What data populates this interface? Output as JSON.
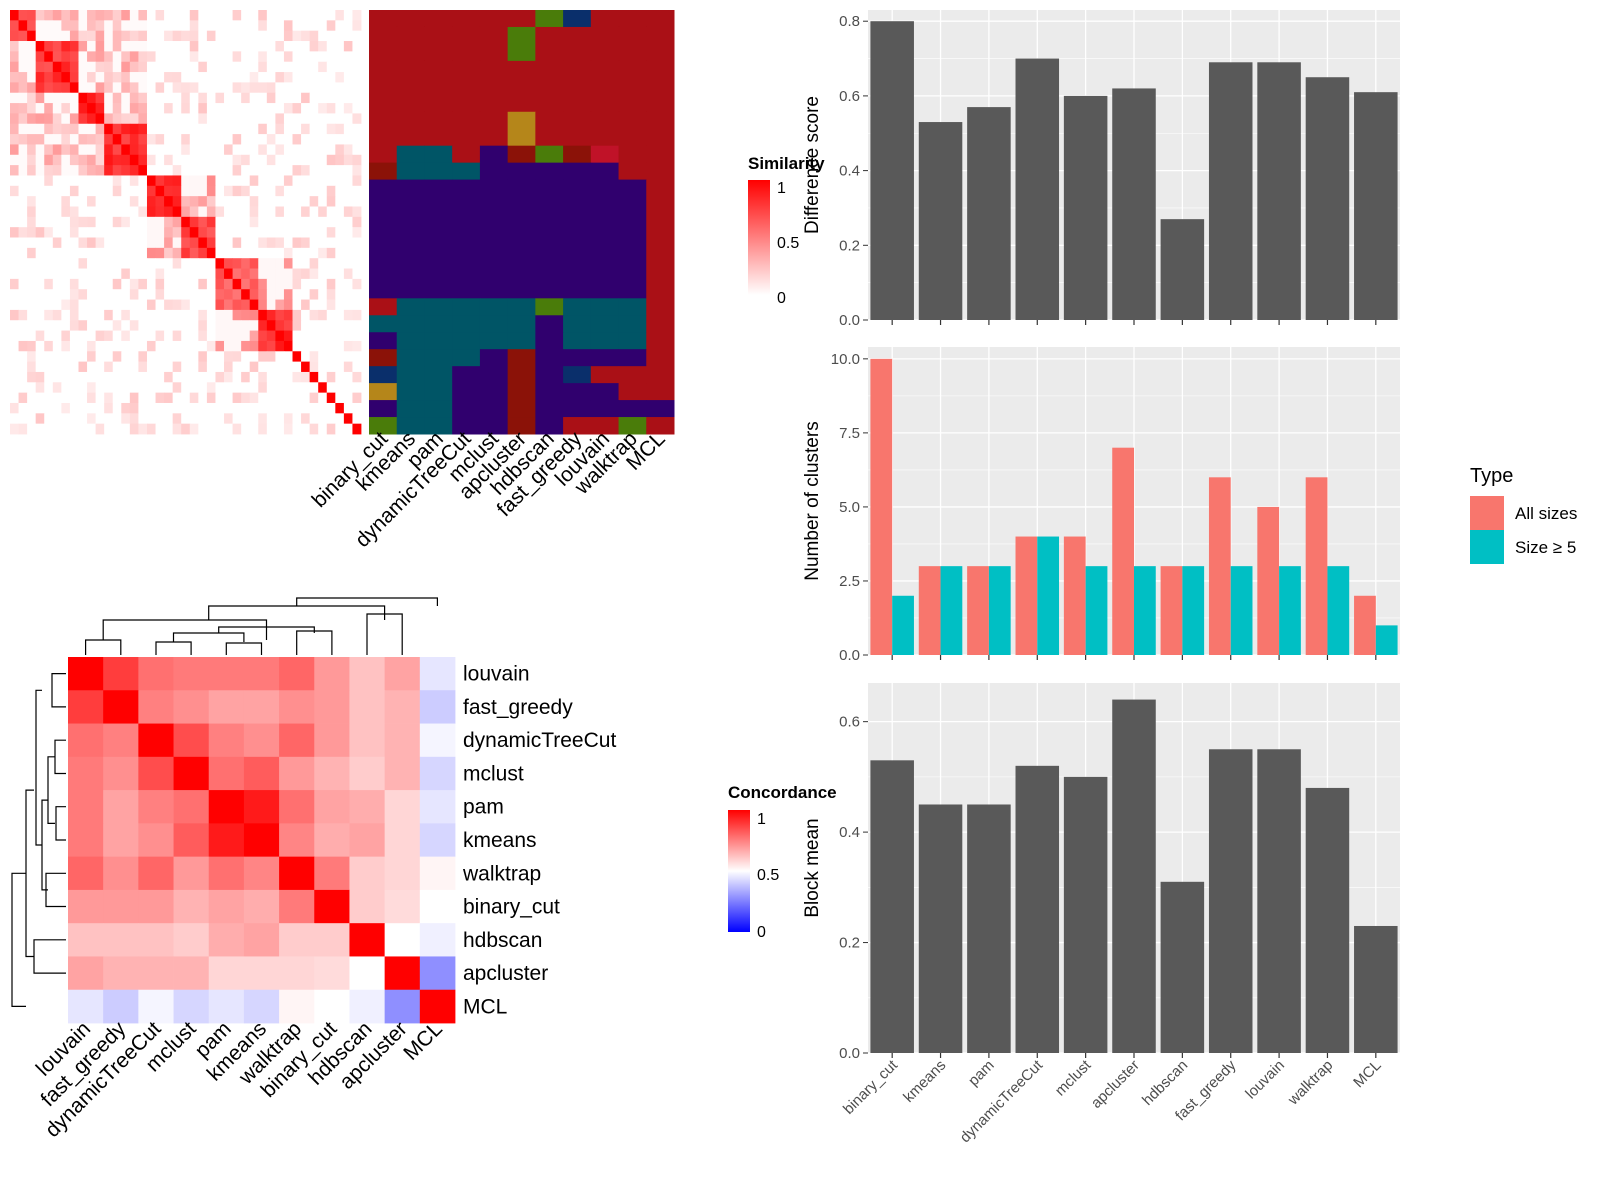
{
  "methods_order": [
    "binary_cut",
    "kmeans",
    "pam",
    "dynamicTreeCut",
    "mclust",
    "apcluster",
    "hdbscan",
    "fast_greedy",
    "louvain",
    "walktrap",
    "MCL"
  ],
  "colors": {
    "panel_bg": "#ebebeb",
    "grid": "#ffffff",
    "bar": "#595959",
    "all_sizes": "#f8766d",
    "size_ge_5": "#00bfc4",
    "heat_high": "#ff0000",
    "heat_mid": "#ffffff",
    "heat_low": "#0000ff"
  },
  "chart_data": [
    {
      "id": "similarity_heatmap",
      "type": "heatmap",
      "legend_title": "Similarity",
      "legend_ticks": [
        "1",
        "0.5",
        "0"
      ],
      "rows": 41,
      "cluster_blocks": [
        {
          "start": 0,
          "size": 3,
          "strength": 0.78
        },
        {
          "start": 3,
          "size": 5,
          "strength": 0.88
        },
        {
          "start": 8,
          "size": 3,
          "strength": 0.95
        },
        {
          "start": 11,
          "size": 5,
          "strength": 0.92
        },
        {
          "start": 16,
          "size": 4,
          "strength": 0.95
        },
        {
          "start": 20,
          "size": 4,
          "strength": 0.85
        },
        {
          "start": 24,
          "size": 5,
          "strength": 0.72
        },
        {
          "start": 29,
          "size": 4,
          "strength": 0.95
        }
      ]
    },
    {
      "id": "membership_grid",
      "type": "heatmap",
      "columns": [
        "binary_cut",
        "kmeans",
        "pam",
        "dynamicTreeCut",
        "mclust",
        "apcluster",
        "hdbscan",
        "fast_greedy",
        "louvain",
        "walktrap",
        "MCL"
      ],
      "palette": {
        "R": "#aa1016",
        "N": "#30006e",
        "T": "#005566",
        "G": "#4a7c0a",
        "O": "#b5861a",
        "D": "#8b1208",
        "B": "#0a2f6b",
        "C": "#c01228"
      },
      "row_bands": [
        {
          "rows": 1,
          "cells": "RRRRRRGBRRR"
        },
        {
          "rows": 2,
          "cells": "RRRRRGRRRRR"
        },
        {
          "rows": 3,
          "cells": "RRRRRRRRRRR"
        },
        {
          "rows": 2,
          "cells": "RRRRRORRRRR"
        },
        {
          "rows": 1,
          "cells": "RTTRNDGDCRR"
        },
        {
          "rows": 1,
          "cells": "DTTTNNNNNRR"
        },
        {
          "rows": 7,
          "cells": "NNNNNNNNNNR"
        },
        {
          "rows": 1,
          "cells": "RTTTTTGTTTR"
        },
        {
          "rows": 1,
          "cells": "TTTTTTNTTTR"
        },
        {
          "rows": 1,
          "cells": "NTTTTTNTTTR"
        },
        {
          "rows": 1,
          "cells": "DTTTNDNNNNR"
        },
        {
          "rows": 1,
          "cells": "BTTNNDNBRRR"
        },
        {
          "rows": 1,
          "cells": "OTTNNDNNNRR"
        },
        {
          "rows": 1,
          "cells": "NTTNNDNNNNN"
        },
        {
          "rows": 1,
          "cells": "GTTNNDNRRGR"
        }
      ]
    },
    {
      "id": "concordance_heatmap",
      "type": "heatmap",
      "legend_title": "Concordance",
      "legend_ticks": [
        "1",
        "0.5",
        "0"
      ],
      "labels": [
        "louvain",
        "fast_greedy",
        "dynamicTreeCut",
        "mclust",
        "pam",
        "kmeans",
        "walktrap",
        "binary_cut",
        "hdbscan",
        "apcluster",
        "MCL"
      ],
      "matrix": [
        [
          1.0,
          0.88,
          0.78,
          0.76,
          0.76,
          0.76,
          0.8,
          0.7,
          0.62,
          0.68,
          0.45
        ],
        [
          0.88,
          1.0,
          0.75,
          0.72,
          0.68,
          0.68,
          0.72,
          0.7,
          0.62,
          0.65,
          0.4
        ],
        [
          0.78,
          0.75,
          1.0,
          0.85,
          0.75,
          0.72,
          0.8,
          0.7,
          0.62,
          0.65,
          0.48
        ],
        [
          0.76,
          0.72,
          0.85,
          1.0,
          0.78,
          0.82,
          0.7,
          0.65,
          0.6,
          0.65,
          0.42
        ],
        [
          0.76,
          0.68,
          0.75,
          0.78,
          1.0,
          0.95,
          0.78,
          0.68,
          0.66,
          0.58,
          0.45
        ],
        [
          0.76,
          0.68,
          0.72,
          0.82,
          0.95,
          1.0,
          0.74,
          0.66,
          0.68,
          0.58,
          0.42
        ],
        [
          0.8,
          0.72,
          0.8,
          0.7,
          0.78,
          0.74,
          1.0,
          0.76,
          0.6,
          0.58,
          0.52
        ],
        [
          0.7,
          0.7,
          0.7,
          0.65,
          0.68,
          0.66,
          0.76,
          1.0,
          0.6,
          0.57,
          0.5
        ],
        [
          0.62,
          0.62,
          0.62,
          0.6,
          0.66,
          0.68,
          0.6,
          0.6,
          1.0,
          0.5,
          0.47
        ],
        [
          0.68,
          0.65,
          0.65,
          0.65,
          0.58,
          0.58,
          0.58,
          0.57,
          0.5,
          1.0,
          0.28
        ],
        [
          0.45,
          0.4,
          0.48,
          0.42,
          0.45,
          0.42,
          0.52,
          0.5,
          0.47,
          0.28,
          1.0
        ]
      ]
    },
    {
      "id": "difference_score",
      "type": "bar",
      "categories": [
        "binary_cut",
        "kmeans",
        "pam",
        "dynamicTreeCut",
        "mclust",
        "apcluster",
        "hdbscan",
        "fast_greedy",
        "louvain",
        "walktrap",
        "MCL"
      ],
      "values": [
        0.8,
        0.53,
        0.57,
        0.7,
        0.6,
        0.62,
        0.27,
        0.69,
        0.69,
        0.65,
        0.61
      ],
      "ylabel": "Difference score",
      "ylim": [
        0,
        0.83
      ],
      "yticks": [
        0.0,
        0.2,
        0.4,
        0.6,
        0.8
      ],
      "ytick_labels": [
        "0.0",
        "0.2",
        "0.4",
        "0.6",
        "0.8"
      ]
    },
    {
      "id": "number_of_clusters",
      "type": "bar",
      "categories": [
        "binary_cut",
        "kmeans",
        "pam",
        "dynamicTreeCut",
        "mclust",
        "apcluster",
        "hdbscan",
        "fast_greedy",
        "louvain",
        "walktrap",
        "MCL"
      ],
      "series": [
        {
          "name": "All sizes",
          "values": [
            10,
            3,
            3,
            4,
            4,
            7,
            3,
            6,
            5,
            6,
            2
          ]
        },
        {
          "name": "Size ≥ 5",
          "values": [
            2,
            3,
            3,
            4,
            3,
            3,
            3,
            3,
            3,
            3,
            1
          ]
        }
      ],
      "ylabel": "Number of clusters",
      "ylim": [
        0,
        10.4
      ],
      "yticks": [
        0.0,
        2.5,
        5.0,
        7.5,
        10.0
      ],
      "ytick_labels": [
        "0.0",
        "2.5",
        "5.0",
        "7.5",
        "10.0"
      ],
      "legend_title": "Type",
      "legend_position": "right"
    },
    {
      "id": "block_mean",
      "type": "bar",
      "categories": [
        "binary_cut",
        "kmeans",
        "pam",
        "dynamicTreeCut",
        "mclust",
        "apcluster",
        "hdbscan",
        "fast_greedy",
        "louvain",
        "walktrap",
        "MCL"
      ],
      "values": [
        0.53,
        0.45,
        0.45,
        0.52,
        0.5,
        0.64,
        0.31,
        0.55,
        0.55,
        0.48,
        0.23
      ],
      "ylabel": "Block mean",
      "ylim": [
        0,
        0.67
      ],
      "yticks": [
        0.0,
        0.2,
        0.4,
        0.6
      ],
      "ytick_labels": [
        "0.0",
        "0.2",
        "0.4",
        "0.6"
      ]
    }
  ]
}
